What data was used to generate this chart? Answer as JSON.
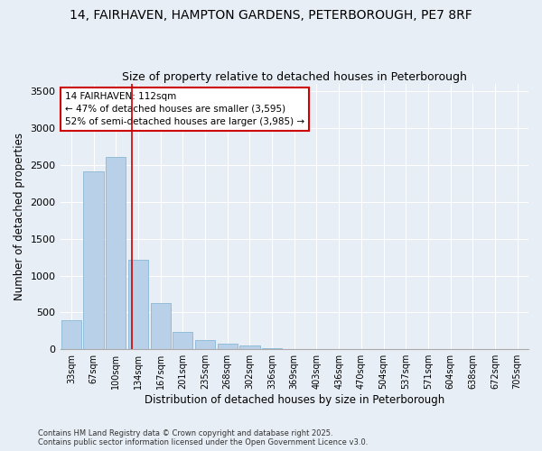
{
  "title_line1": "14, FAIRHAVEN, HAMPTON GARDENS, PETERBOROUGH, PE7 8RF",
  "title_line2": "Size of property relative to detached houses in Peterborough",
  "xlabel": "Distribution of detached houses by size in Peterborough",
  "ylabel": "Number of detached properties",
  "footer_line1": "Contains HM Land Registry data © Crown copyright and database right 2025.",
  "footer_line2": "Contains public sector information licensed under the Open Government Licence v3.0.",
  "categories": [
    "33sqm",
    "67sqm",
    "100sqm",
    "134sqm",
    "167sqm",
    "201sqm",
    "235sqm",
    "268sqm",
    "302sqm",
    "336sqm",
    "369sqm",
    "403sqm",
    "436sqm",
    "470sqm",
    "504sqm",
    "537sqm",
    "571sqm",
    "604sqm",
    "638sqm",
    "672sqm",
    "705sqm"
  ],
  "values": [
    400,
    2420,
    2610,
    1220,
    630,
    240,
    130,
    80,
    50,
    20,
    8,
    3,
    1,
    0,
    0,
    0,
    0,
    0,
    0,
    0,
    0
  ],
  "bar_color": "#b8d0e8",
  "bar_edge_color": "#7aafd0",
  "vline_x": 2.72,
  "vline_color": "#cc0000",
  "annotation_text": "14 FAIRHAVEN: 112sqm\n← 47% of detached houses are smaller (3,595)\n52% of semi-detached houses are larger (3,985) →",
  "annotation_box_color": "#cc0000",
  "ylim": [
    0,
    3600
  ],
  "yticks": [
    0,
    500,
    1000,
    1500,
    2000,
    2500,
    3000,
    3500
  ],
  "background_color": "#e8eef5",
  "plot_background": "#e8eef5",
  "grid_color": "#ffffff",
  "title_fontsize": 10,
  "subtitle_fontsize": 9
}
